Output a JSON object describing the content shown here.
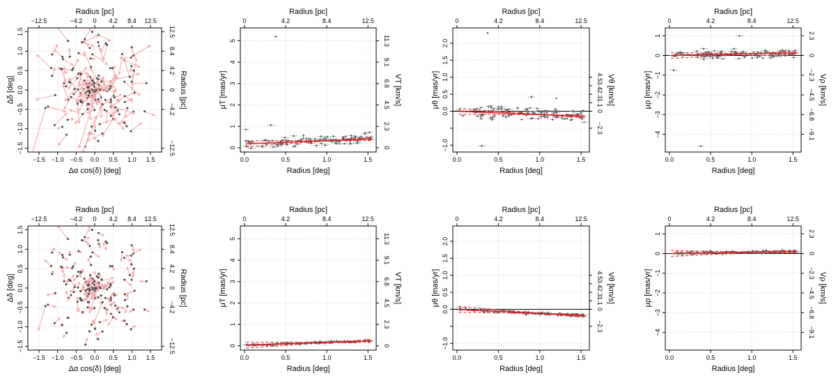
{
  "figure": {
    "description_labels": {
      "radius_pc": "Radius [pc]",
      "radius_deg": "Radius [deg]",
      "dalpha": "Δα cos(δ) [deg]",
      "ddelta": "Δδ [deg]",
      "muT": "μT [mas/yr]",
      "VT": "VT [km/s]",
      "mutheta": "μθ [mas/yr]",
      "Vtheta": "Vθ [km/s]",
      "murho": "μρ [mas/yr]",
      "Vrho": "Vρ [km/s]"
    },
    "colors": {
      "arrow": "#f4a6a6",
      "point": "#444444",
      "fit": "#d62020",
      "errbar": "#999999",
      "grid": "#cccccc"
    }
  },
  "chart_data": [
    {
      "id": "r1c1",
      "type": "scatter",
      "title": "",
      "xlabel": "Δα cos(δ) [deg]",
      "ylabel": "Δδ [deg]",
      "top_label": "Radius [pc]",
      "right_label": "Radius [pc]",
      "xlim": [
        -1.8,
        1.8
      ],
      "ylim": [
        -1.6,
        1.6
      ],
      "xticks": [
        -1.5,
        -1.0,
        -0.5,
        0.0,
        0.5,
        1.0,
        1.5
      ],
      "xticklabels": [
        "−1.5",
        "−1.0",
        "−0.5",
        "0.0",
        "0.5",
        "1.0",
        "1.5"
      ],
      "yticks": [
        -1.5,
        -1.0,
        -0.5,
        0.0,
        0.5,
        1.0,
        1.5
      ],
      "yticklabels": [
        "−1.5",
        "−1.0",
        "−0.5",
        "0.0",
        "0.5",
        "1.0",
        "1.5"
      ],
      "topticks": [
        -1.5,
        -0.5,
        0.0,
        0.5,
        1.0,
        1.5
      ],
      "topticklabels": [
        "−12.5",
        "−4.2",
        "0",
        "4.2",
        "8.4",
        "12.5"
      ],
      "rightticks": [
        -1.5,
        -0.5,
        0.0,
        0.5,
        1.0,
        1.5
      ],
      "rightticklabels": [
        "−12.5",
        "−4.2",
        "0",
        "4.2",
        "8.4",
        "12.5"
      ],
      "arrow_scale": 1.0,
      "seed": 11
    },
    {
      "id": "r1c2",
      "type": "scatter",
      "xlabel": "Radius [deg]",
      "ylabel": "μT [mas/yr]",
      "top_label": "Radius [pc]",
      "right_label": "VT [km/s]",
      "xlim": [
        -0.05,
        1.6
      ],
      "ylim": [
        -0.2,
        5.6
      ],
      "xticks": [
        0.0,
        0.5,
        1.0,
        1.5
      ],
      "xticklabels": [
        "0.0",
        "0.5",
        "1.0",
        "1.5"
      ],
      "yticks": [
        0,
        1,
        2,
        3,
        4,
        5
      ],
      "yticklabels": [
        "0",
        "1",
        "2",
        "3",
        "4",
        "5"
      ],
      "topticks": [
        0.0,
        0.5,
        1.0,
        1.5
      ],
      "topticklabels": [
        "0",
        "4.2",
        "8.4",
        "12.5"
      ],
      "rightticks": [
        0,
        1,
        2,
        3,
        4,
        5
      ],
      "rightticklabels": [
        "0",
        "2.3",
        "4.5",
        "6.8",
        "9.1",
        "11.3"
      ],
      "zero_line": false,
      "fit": {
        "intercept": 0.18,
        "slope": 0.15
      },
      "base": 0.22,
      "slope": 0.14,
      "spread": 0.22,
      "outliers": [
        [
          0.38,
          5.2
        ],
        [
          0.32,
          1.06
        ],
        [
          0.02,
          0.85
        ],
        [
          1.52,
          0.72
        ]
      ],
      "seed": 21
    },
    {
      "id": "r1c3",
      "type": "scatter",
      "xlabel": "Radius [deg]",
      "ylabel": "μθ [mas/yr]",
      "top_label": "Radius [pc]",
      "right_label": "Vθ [km/s]",
      "xlim": [
        -0.05,
        1.6
      ],
      "ylim": [
        -1.2,
        2.45
      ],
      "xticks": [
        0.0,
        0.5,
        1.0,
        1.5
      ],
      "xticklabels": [
        "0.0",
        "0.5",
        "1.0",
        "1.5"
      ],
      "yticks": [
        -1.0,
        -0.5,
        0.0,
        0.5,
        1.0,
        1.5,
        2.0
      ],
      "yticklabels": [
        "−1.0",
        "",
        "0.0",
        "0.5",
        "1.0",
        "1.5",
        "2.0"
      ],
      "topticks": [
        0.0,
        0.5,
        1.0,
        1.5
      ],
      "topticklabels": [
        "0",
        "4.2",
        "8.4",
        "12.5"
      ],
      "rightticks": [
        -0.5,
        0.0,
        0.25,
        0.5,
        0.75,
        1.0
      ],
      "rightticklabels": [
        "−2.3",
        "0",
        "1.1",
        "2.3",
        "3.4",
        "4.5"
      ],
      "zero_line": true,
      "fit": {
        "intercept": 0.0,
        "slope": -0.1
      },
      "base": 0.0,
      "slope": -0.08,
      "spread": 0.18,
      "outliers": [
        [
          0.37,
          2.3
        ],
        [
          0.3,
          -1.02
        ],
        [
          0.9,
          0.42
        ],
        [
          1.2,
          0.38
        ]
      ],
      "seed": 31
    },
    {
      "id": "r1c4",
      "type": "scatter",
      "xlabel": "Radius [deg]",
      "ylabel": "μρ [mas/yr]",
      "top_label": "Radius [pc]",
      "right_label": "Vρ [km/s]",
      "xlim": [
        -0.05,
        1.6
      ],
      "ylim": [
        -4.9,
        1.4
      ],
      "xticks": [
        0.0,
        0.5,
        1.0,
        1.5
      ],
      "xticklabels": [
        "0.0",
        "0.5",
        "1.0",
        "1.5"
      ],
      "yticks": [
        -4,
        -3,
        -2,
        -1,
        0,
        1
      ],
      "yticklabels": [
        "−4",
        "−3",
        "−2",
        "−1",
        "0",
        "1"
      ],
      "topticks": [
        0.0,
        0.5,
        1.0,
        1.5
      ],
      "topticklabels": [
        "0",
        "4.2",
        "8.4",
        "12.5"
      ],
      "rightticks": [
        -4.0,
        -3.0,
        -2.0,
        -1.0,
        0.0,
        1.0
      ],
      "rightticklabels": [
        "−9.1",
        "−6.8",
        "−4.5",
        "−2.3",
        "0",
        "2.3"
      ],
      "zero_line": true,
      "fit": {
        "intercept": 0.0,
        "slope": 0.09
      },
      "base": 0.02,
      "slope": 0.06,
      "spread": 0.22,
      "outliers": [
        [
          0.38,
          -4.6
        ],
        [
          0.85,
          1.0
        ],
        [
          0.05,
          -0.75
        ]
      ],
      "seed": 41
    },
    {
      "id": "r2c1",
      "type": "scatter",
      "xlabel": "Δα cos(δ) [deg]",
      "ylabel": "Δδ [deg]",
      "top_label": "Radius [pc]",
      "right_label": "Radius [pc]",
      "xlim": [
        -1.8,
        1.8
      ],
      "ylim": [
        -1.6,
        1.6
      ],
      "xticks": [
        -1.5,
        -1.0,
        -0.5,
        0.0,
        0.5,
        1.0,
        1.5
      ],
      "xticklabels": [
        "−1.5",
        "−1.0",
        "−0.5",
        "0.0",
        "0.5",
        "1.0",
        "1.5"
      ],
      "yticks": [
        -1.5,
        -1.0,
        -0.5,
        0.0,
        0.5,
        1.0,
        1.5
      ],
      "yticklabels": [
        "−1.5",
        "−1.0",
        "−0.5",
        "0.0",
        "0.5",
        "1.0",
        "1.5"
      ],
      "topticks": [
        -1.5,
        -0.5,
        0.0,
        0.5,
        1.0,
        1.5
      ],
      "topticklabels": [
        "−12.5",
        "−4.2",
        "0",
        "4.2",
        "8.4",
        "12.5"
      ],
      "rightticks": [
        -1.5,
        -0.5,
        0.0,
        0.5,
        1.0,
        1.5
      ],
      "rightticklabels": [
        "−12.5",
        "−4.2",
        "0",
        "4.2",
        "8.4",
        "12.5"
      ],
      "arrow_scale": 0.45,
      "seed": 11
    },
    {
      "id": "r2c2",
      "type": "scatter",
      "xlabel": "Radius [deg]",
      "ylabel": "μT [mas/yr]",
      "top_label": "Radius [pc]",
      "right_label": "VT [km/s]",
      "xlim": [
        -0.05,
        1.6
      ],
      "ylim": [
        -0.2,
        5.6
      ],
      "xticks": [
        0.0,
        0.5,
        1.0,
        1.5
      ],
      "xticklabels": [
        "0.0",
        "0.5",
        "1.0",
        "1.5"
      ],
      "yticks": [
        0,
        1,
        2,
        3,
        4,
        5
      ],
      "yticklabels": [
        "0",
        "1",
        "2",
        "3",
        "4",
        "5"
      ],
      "topticks": [
        0.0,
        0.5,
        1.0,
        1.5
      ],
      "topticklabels": [
        "0",
        "4.2",
        "8.4",
        "12.5"
      ],
      "rightticks": [
        0,
        1,
        2,
        3,
        4,
        5
      ],
      "rightticklabels": [
        "0",
        "2.3",
        "4.5",
        "6.8",
        "9.1",
        "11.3"
      ],
      "zero_line": false,
      "fit": {
        "intercept": 0.03,
        "slope": 0.13
      },
      "base": 0.03,
      "slope": 0.13,
      "spread": 0.05,
      "outliers": [],
      "seed": 22
    },
    {
      "id": "r2c3",
      "type": "scatter",
      "xlabel": "Radius [deg]",
      "ylabel": "μθ [mas/yr]",
      "top_label": "Radius [pc]",
      "right_label": "Vθ [km/s]",
      "xlim": [
        -0.05,
        1.6
      ],
      "ylim": [
        -1.2,
        2.45
      ],
      "xticks": [
        0.0,
        0.5,
        1.0,
        1.5
      ],
      "xticklabels": [
        "0.0",
        "0.5",
        "1.0",
        "1.5"
      ],
      "yticks": [
        -1.0,
        -0.5,
        0.0,
        0.5,
        1.0,
        1.5,
        2.0
      ],
      "yticklabels": [
        "−1.0",
        "",
        "0.0",
        "0.5",
        "1.0",
        "1.5",
        "2.0"
      ],
      "topticks": [
        0.0,
        0.5,
        1.0,
        1.5
      ],
      "topticklabels": [
        "0",
        "4.2",
        "8.4",
        "12.5"
      ],
      "rightticks": [
        -0.5,
        0.0,
        0.25,
        0.5,
        0.75,
        1.0
      ],
      "rightticklabels": [
        "−2.3",
        "0",
        "1.1",
        "2.3",
        "3.4",
        "4.5"
      ],
      "zero_line": true,
      "fit": {
        "intercept": 0.0,
        "slope": -0.12
      },
      "base": 0.0,
      "slope": -0.12,
      "spread": 0.04,
      "outliers": [],
      "seed": 32
    },
    {
      "id": "r2c4",
      "type": "scatter",
      "xlabel": "Radius [deg]",
      "ylabel": "μρ [mas/yr]",
      "top_label": "Radius [pc]",
      "right_label": "Vρ [km/s]",
      "xlim": [
        -0.05,
        1.6
      ],
      "ylim": [
        -4.9,
        1.4
      ],
      "xticks": [
        0.0,
        0.5,
        1.0,
        1.5
      ],
      "xticklabels": [
        "0.0",
        "0.5",
        "1.0",
        "1.5"
      ],
      "yticks": [
        -4,
        -3,
        -2,
        -1,
        0,
        1
      ],
      "yticklabels": [
        "−4",
        "−3",
        "−2",
        "−1",
        "0",
        "1"
      ],
      "topticks": [
        0.0,
        0.5,
        1.0,
        1.5
      ],
      "topticklabels": [
        "0",
        "4.2",
        "8.4",
        "12.5"
      ],
      "rightticks": [
        -4.0,
        -3.0,
        -2.0,
        -1.0,
        0.0,
        1.0
      ],
      "rightticklabels": [
        "−9.1",
        "−6.8",
        "−4.5",
        "−2.3",
        "0",
        "2.3"
      ],
      "zero_line": true,
      "fit": {
        "intercept": 0.0,
        "slope": 0.07
      },
      "base": 0.0,
      "slope": 0.07,
      "spread": 0.07,
      "outliers": [],
      "seed": 42
    }
  ]
}
